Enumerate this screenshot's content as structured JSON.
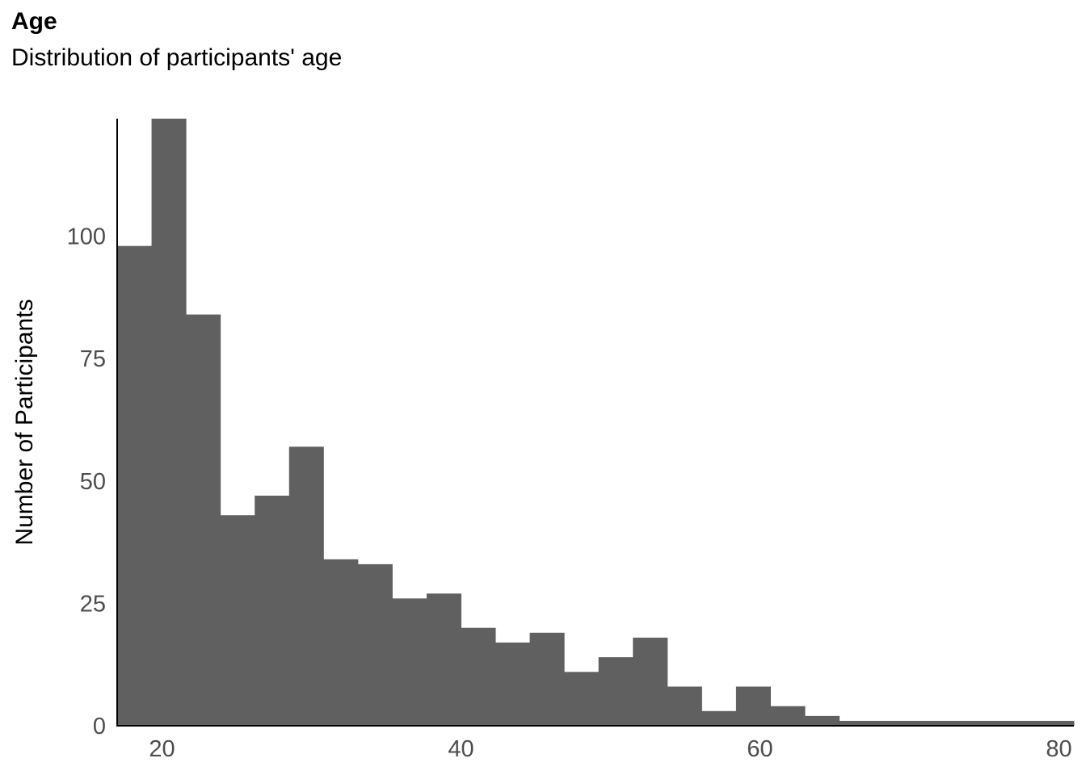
{
  "chart_data": {
    "type": "bar",
    "title": "Age",
    "subtitle": "Distribution of participants' age",
    "xlabel": "",
    "ylabel": "Number of Participants",
    "bar_color": "#606060",
    "background": "#ffffff",
    "grid": false,
    "legend": "none",
    "bin_width": 2.3,
    "xlim": [
      17,
      81
    ],
    "ylim": [
      0,
      124
    ],
    "x_ticks": [
      20,
      40,
      60,
      80
    ],
    "y_ticks": [
      0,
      25,
      50,
      75,
      100
    ],
    "bins": [
      {
        "x0": 17.0,
        "x1": 19.3,
        "count": 98
      },
      {
        "x0": 19.3,
        "x1": 21.6,
        "count": 124
      },
      {
        "x0": 21.6,
        "x1": 23.9,
        "count": 84
      },
      {
        "x0": 23.9,
        "x1": 26.2,
        "count": 43
      },
      {
        "x0": 26.2,
        "x1": 28.5,
        "count": 47
      },
      {
        "x0": 28.5,
        "x1": 30.8,
        "count": 57
      },
      {
        "x0": 30.8,
        "x1": 33.1,
        "count": 34
      },
      {
        "x0": 33.1,
        "x1": 35.4,
        "count": 33
      },
      {
        "x0": 35.4,
        "x1": 37.7,
        "count": 26
      },
      {
        "x0": 37.7,
        "x1": 40.0,
        "count": 27
      },
      {
        "x0": 40.0,
        "x1": 42.3,
        "count": 20
      },
      {
        "x0": 42.3,
        "x1": 44.6,
        "count": 17
      },
      {
        "x0": 44.6,
        "x1": 46.9,
        "count": 19
      },
      {
        "x0": 46.9,
        "x1": 49.2,
        "count": 11
      },
      {
        "x0": 49.2,
        "x1": 51.5,
        "count": 14
      },
      {
        "x0": 51.5,
        "x1": 53.8,
        "count": 18
      },
      {
        "x0": 53.8,
        "x1": 56.1,
        "count": 8
      },
      {
        "x0": 56.1,
        "x1": 58.4,
        "count": 3
      },
      {
        "x0": 58.4,
        "x1": 60.7,
        "count": 8
      },
      {
        "x0": 60.7,
        "x1": 63.0,
        "count": 4
      },
      {
        "x0": 63.0,
        "x1": 65.3,
        "count": 2
      },
      {
        "x0": 65.3,
        "x1": 67.6,
        "count": 1
      },
      {
        "x0": 67.6,
        "x1": 69.9,
        "count": 1
      },
      {
        "x0": 69.9,
        "x1": 72.2,
        "count": 1
      },
      {
        "x0": 72.2,
        "x1": 74.5,
        "count": 1
      },
      {
        "x0": 74.5,
        "x1": 76.8,
        "count": 1
      },
      {
        "x0": 76.8,
        "x1": 79.1,
        "count": 1
      },
      {
        "x0": 79.1,
        "x1": 81.0,
        "count": 1
      }
    ]
  }
}
